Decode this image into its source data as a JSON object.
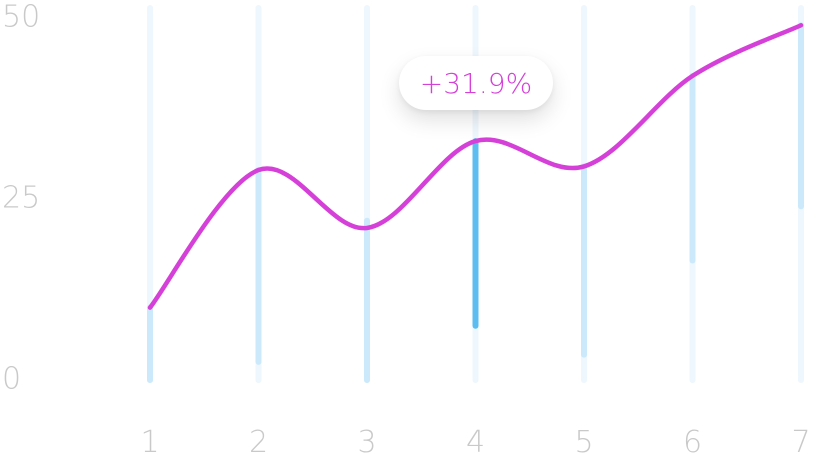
{
  "chart_data": {
    "type": "line",
    "title": "",
    "xlabel": "",
    "ylabel": "",
    "x": [
      1,
      2,
      3,
      4,
      5,
      6,
      7
    ],
    "x_tick_labels": [
      "1",
      "2",
      "3",
      "4",
      "5",
      "6",
      "7"
    ],
    "y_tick_labels": [
      "0",
      "25",
      "50"
    ],
    "ylim": [
      0,
      50
    ],
    "grid": false,
    "series": [
      {
        "values": [
          10,
          29,
          21,
          33,
          29.5,
          42,
          49
        ],
        "color": "#d440d8",
        "smooth": true
      }
    ],
    "range_bars": {
      "color": "#cbe9fb",
      "highlight_color": "#5bbdf0",
      "highlight_index": 3,
      "highlighted_range": [
        7.5,
        33
      ],
      "ranges": [
        [
          0,
          10
        ],
        [
          2.5,
          29
        ],
        [
          0,
          22
        ],
        [
          7.5,
          33
        ],
        [
          3.5,
          29.5
        ],
        [
          16.5,
          42
        ],
        [
          24,
          49
        ]
      ]
    },
    "annotation": {
      "text": "+31.9%",
      "at_index": 3
    }
  }
}
